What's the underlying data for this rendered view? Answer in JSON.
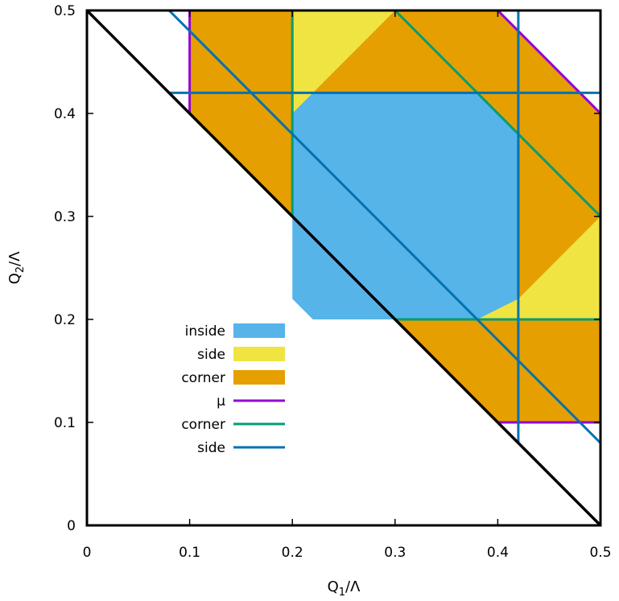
{
  "chart_data": {
    "type": "area",
    "xlabel": {
      "base": "Q",
      "sub": "1",
      "rest": "/Λ"
    },
    "ylabel": {
      "base": "Q",
      "sub": "2",
      "rest": "/Λ"
    },
    "xlim": [
      0,
      0.5
    ],
    "ylim": [
      0,
      0.5
    ],
    "xticks": [
      "0",
      "0.1",
      "0.2",
      "0.3",
      "0.4",
      "0.5"
    ],
    "yticks": [
      "0",
      "0.1",
      "0.2",
      "0.3",
      "0.4",
      "0.5"
    ],
    "grid": false,
    "legend_position": "left, lower-middle",
    "colors": {
      "inside": "#56b4e9",
      "side": "#f0e442",
      "corner": "#e69f00",
      "mu": "#9400d3",
      "corner_line": "#009e73",
      "side_line": "#0072b2",
      "frame": "#000000"
    },
    "regions": [
      {
        "name": "corner",
        "color_key": "corner",
        "polygon": [
          [
            0.1,
            0.5
          ],
          [
            0.4,
            0.5
          ],
          [
            0.5,
            0.4
          ],
          [
            0.5,
            0.1
          ],
          [
            0.4,
            0.1
          ],
          [
            0.1,
            0.4
          ]
        ]
      },
      {
        "name": "side",
        "color_key": "side",
        "polygon": [
          [
            0.2,
            0.5
          ],
          [
            0.3,
            0.5
          ],
          [
            0.2,
            0.4
          ]
        ]
      },
      {
        "name": "side",
        "color_key": "side",
        "polygon": [
          [
            0.5,
            0.3
          ],
          [
            0.5,
            0.2
          ],
          [
            0.4,
            0.2
          ]
        ]
      },
      {
        "name": "side",
        "color_key": "side",
        "polygon": [
          [
            0.2,
            0.42
          ],
          [
            0.2,
            0.3
          ],
          [
            0.3,
            0.2
          ],
          [
            0.42,
            0.2
          ],
          [
            0.42,
            0.38
          ],
          [
            0.38,
            0.42
          ]
        ]
      },
      {
        "name": "inside",
        "color_key": "inside",
        "polygon": [
          [
            0.22,
            0.42
          ],
          [
            0.38,
            0.42
          ],
          [
            0.42,
            0.38
          ],
          [
            0.42,
            0.22
          ],
          [
            0.38,
            0.2
          ],
          [
            0.22,
            0.2
          ],
          [
            0.2,
            0.22
          ],
          [
            0.2,
            0.4
          ]
        ]
      }
    ],
    "lines": [
      {
        "name": "μ",
        "color_key": "mu",
        "points": [
          [
            0.1,
            0.5
          ],
          [
            0.1,
            0.4
          ]
        ]
      },
      {
        "name": "μ",
        "color_key": "mu",
        "points": [
          [
            0.4,
            0.5
          ],
          [
            0.5,
            0.4
          ]
        ]
      },
      {
        "name": "μ",
        "color_key": "mu",
        "points": [
          [
            0.4,
            0.1
          ],
          [
            0.5,
            0.1
          ]
        ]
      },
      {
        "name": "corner",
        "color_key": "corner_line",
        "points": [
          [
            0.2,
            0.5
          ],
          [
            0.2,
            0.3
          ]
        ]
      },
      {
        "name": "corner",
        "color_key": "corner_line",
        "points": [
          [
            0.3,
            0.5
          ],
          [
            0.5,
            0.3
          ]
        ]
      },
      {
        "name": "corner",
        "color_key": "corner_line",
        "points": [
          [
            0.3,
            0.2
          ],
          [
            0.5,
            0.2
          ]
        ]
      },
      {
        "name": "side",
        "color_key": "side_line",
        "points": [
          [
            0.08,
            0.5
          ],
          [
            0.5,
            0.08
          ]
        ]
      },
      {
        "name": "side",
        "color_key": "side_line",
        "points": [
          [
            0.08,
            0.42
          ],
          [
            0.5,
            0.42
          ]
        ]
      },
      {
        "name": "side",
        "color_key": "side_line",
        "points": [
          [
            0.42,
            0.5
          ],
          [
            0.42,
            0.08
          ]
        ]
      },
      {
        "name": "",
        "color_key": "frame",
        "points": [
          [
            0,
            0.5
          ],
          [
            0.5,
            0
          ]
        ]
      }
    ],
    "legend": [
      {
        "label": "inside",
        "kind": "box",
        "color_key": "inside"
      },
      {
        "label": "side",
        "kind": "box",
        "color_key": "side"
      },
      {
        "label": "corner",
        "kind": "box",
        "color_key": "corner"
      },
      {
        "label": "μ",
        "kind": "line",
        "color_key": "mu"
      },
      {
        "label": "corner",
        "kind": "line",
        "color_key": "corner_line"
      },
      {
        "label": "side",
        "kind": "line",
        "color_key": "side_line"
      }
    ]
  }
}
